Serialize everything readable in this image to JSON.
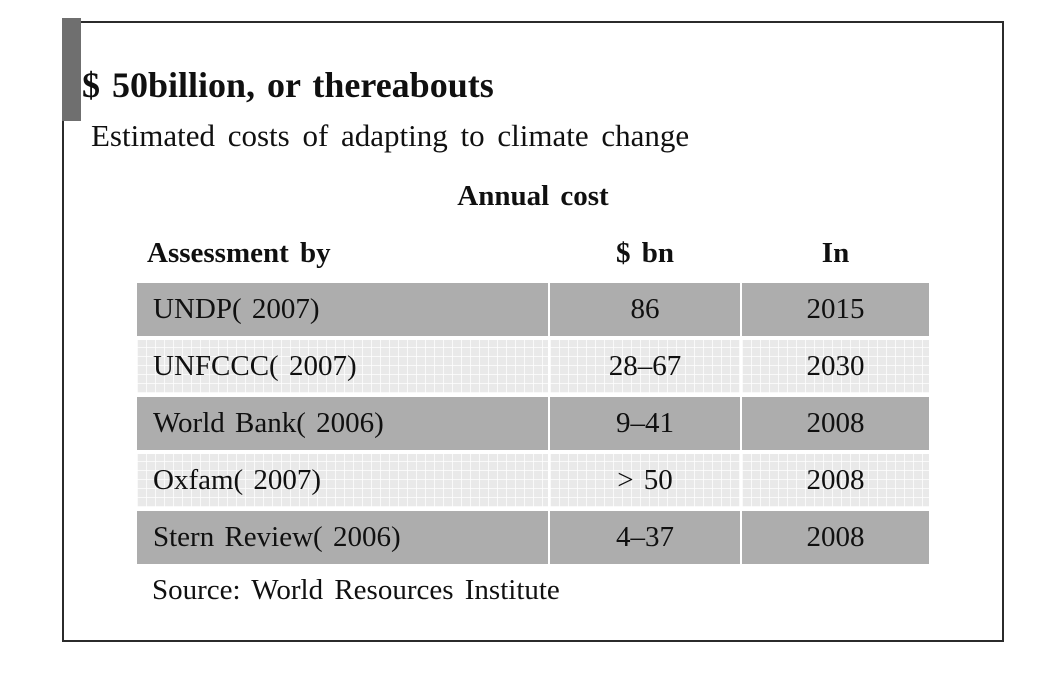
{
  "chart_data": {
    "type": "table",
    "title": "$ 50billion, or thereabouts",
    "subtitle": "Estimated costs of adapting to climate change",
    "group_header": "Annual cost",
    "columns": [
      "Assessment by",
      "$ bn",
      "In"
    ],
    "rows": [
      [
        "UNDP( 2007)",
        "86",
        "2015"
      ],
      [
        "UNFCCC( 2007)",
        "28–67",
        "2030"
      ],
      [
        "World Bank( 2006)",
        "9–41",
        "2008"
      ],
      [
        "Oxfam( 2007)",
        "> 50",
        "2008"
      ],
      [
        "Stern Review( 2006)",
        "4–37",
        "2008"
      ]
    ],
    "source": "Source: World Resources Institute",
    "layout": {
      "legend": "none",
      "grid": "off",
      "row_striping": "alternating dark gray / light textured"
    }
  },
  "colors": {
    "accent_bar": "#6f6f6f",
    "panel_border": "#2b2b2b",
    "row_dark": "#adadad",
    "row_light": "#e9e9e9",
    "text": "#101010",
    "background": "#ffffff"
  }
}
